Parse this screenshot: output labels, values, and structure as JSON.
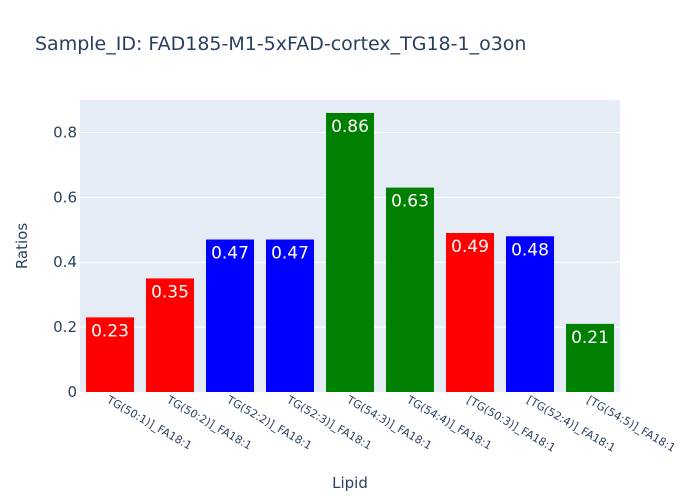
{
  "chart_data": {
    "type": "bar",
    "title": "Sample_ID: FAD185-M1-5xFAD-cortex_TG18-1_o3on",
    "xlabel": "Lipid",
    "ylabel": "Ratios",
    "categories": [
      "TG(50:1)]_FA18:1",
      "TG(50:2)]_FA18:1",
      "TG(52:2)]_FA18:1",
      "TG(52:3)]_FA18:1",
      "TG(54:3)]_FA18:1",
      "TG(54:4)]_FA18:1",
      "[TG(50:3)]_FA18:1",
      "[TG(52:4)]_FA18:1",
      "[TG(54:5)]_FA18:1"
    ],
    "values": [
      0.23,
      0.35,
      0.47,
      0.47,
      0.86,
      0.63,
      0.49,
      0.48,
      0.21
    ],
    "data_labels": [
      "0.23",
      "0.35",
      "0.47",
      "0.47",
      "0.86",
      "0.63",
      "0.49",
      "0.48",
      "0.21"
    ],
    "bar_colors": [
      "#ff0000",
      "#ff0000",
      "#0000ff",
      "#0000ff",
      "#008000",
      "#008000",
      "#ff0000",
      "#0000ff",
      "#008000"
    ],
    "ylim": [
      0,
      0.9
    ],
    "yticks": [
      0,
      0.2,
      0.4,
      0.6,
      0.8
    ],
    "ytick_labels": [
      "0",
      "0.2",
      "0.4",
      "0.6",
      "0.8"
    ],
    "grid": true,
    "plot_bg": "#e5ecf6",
    "grid_color": "#ffffff",
    "text_color": "#2a3f5f"
  }
}
